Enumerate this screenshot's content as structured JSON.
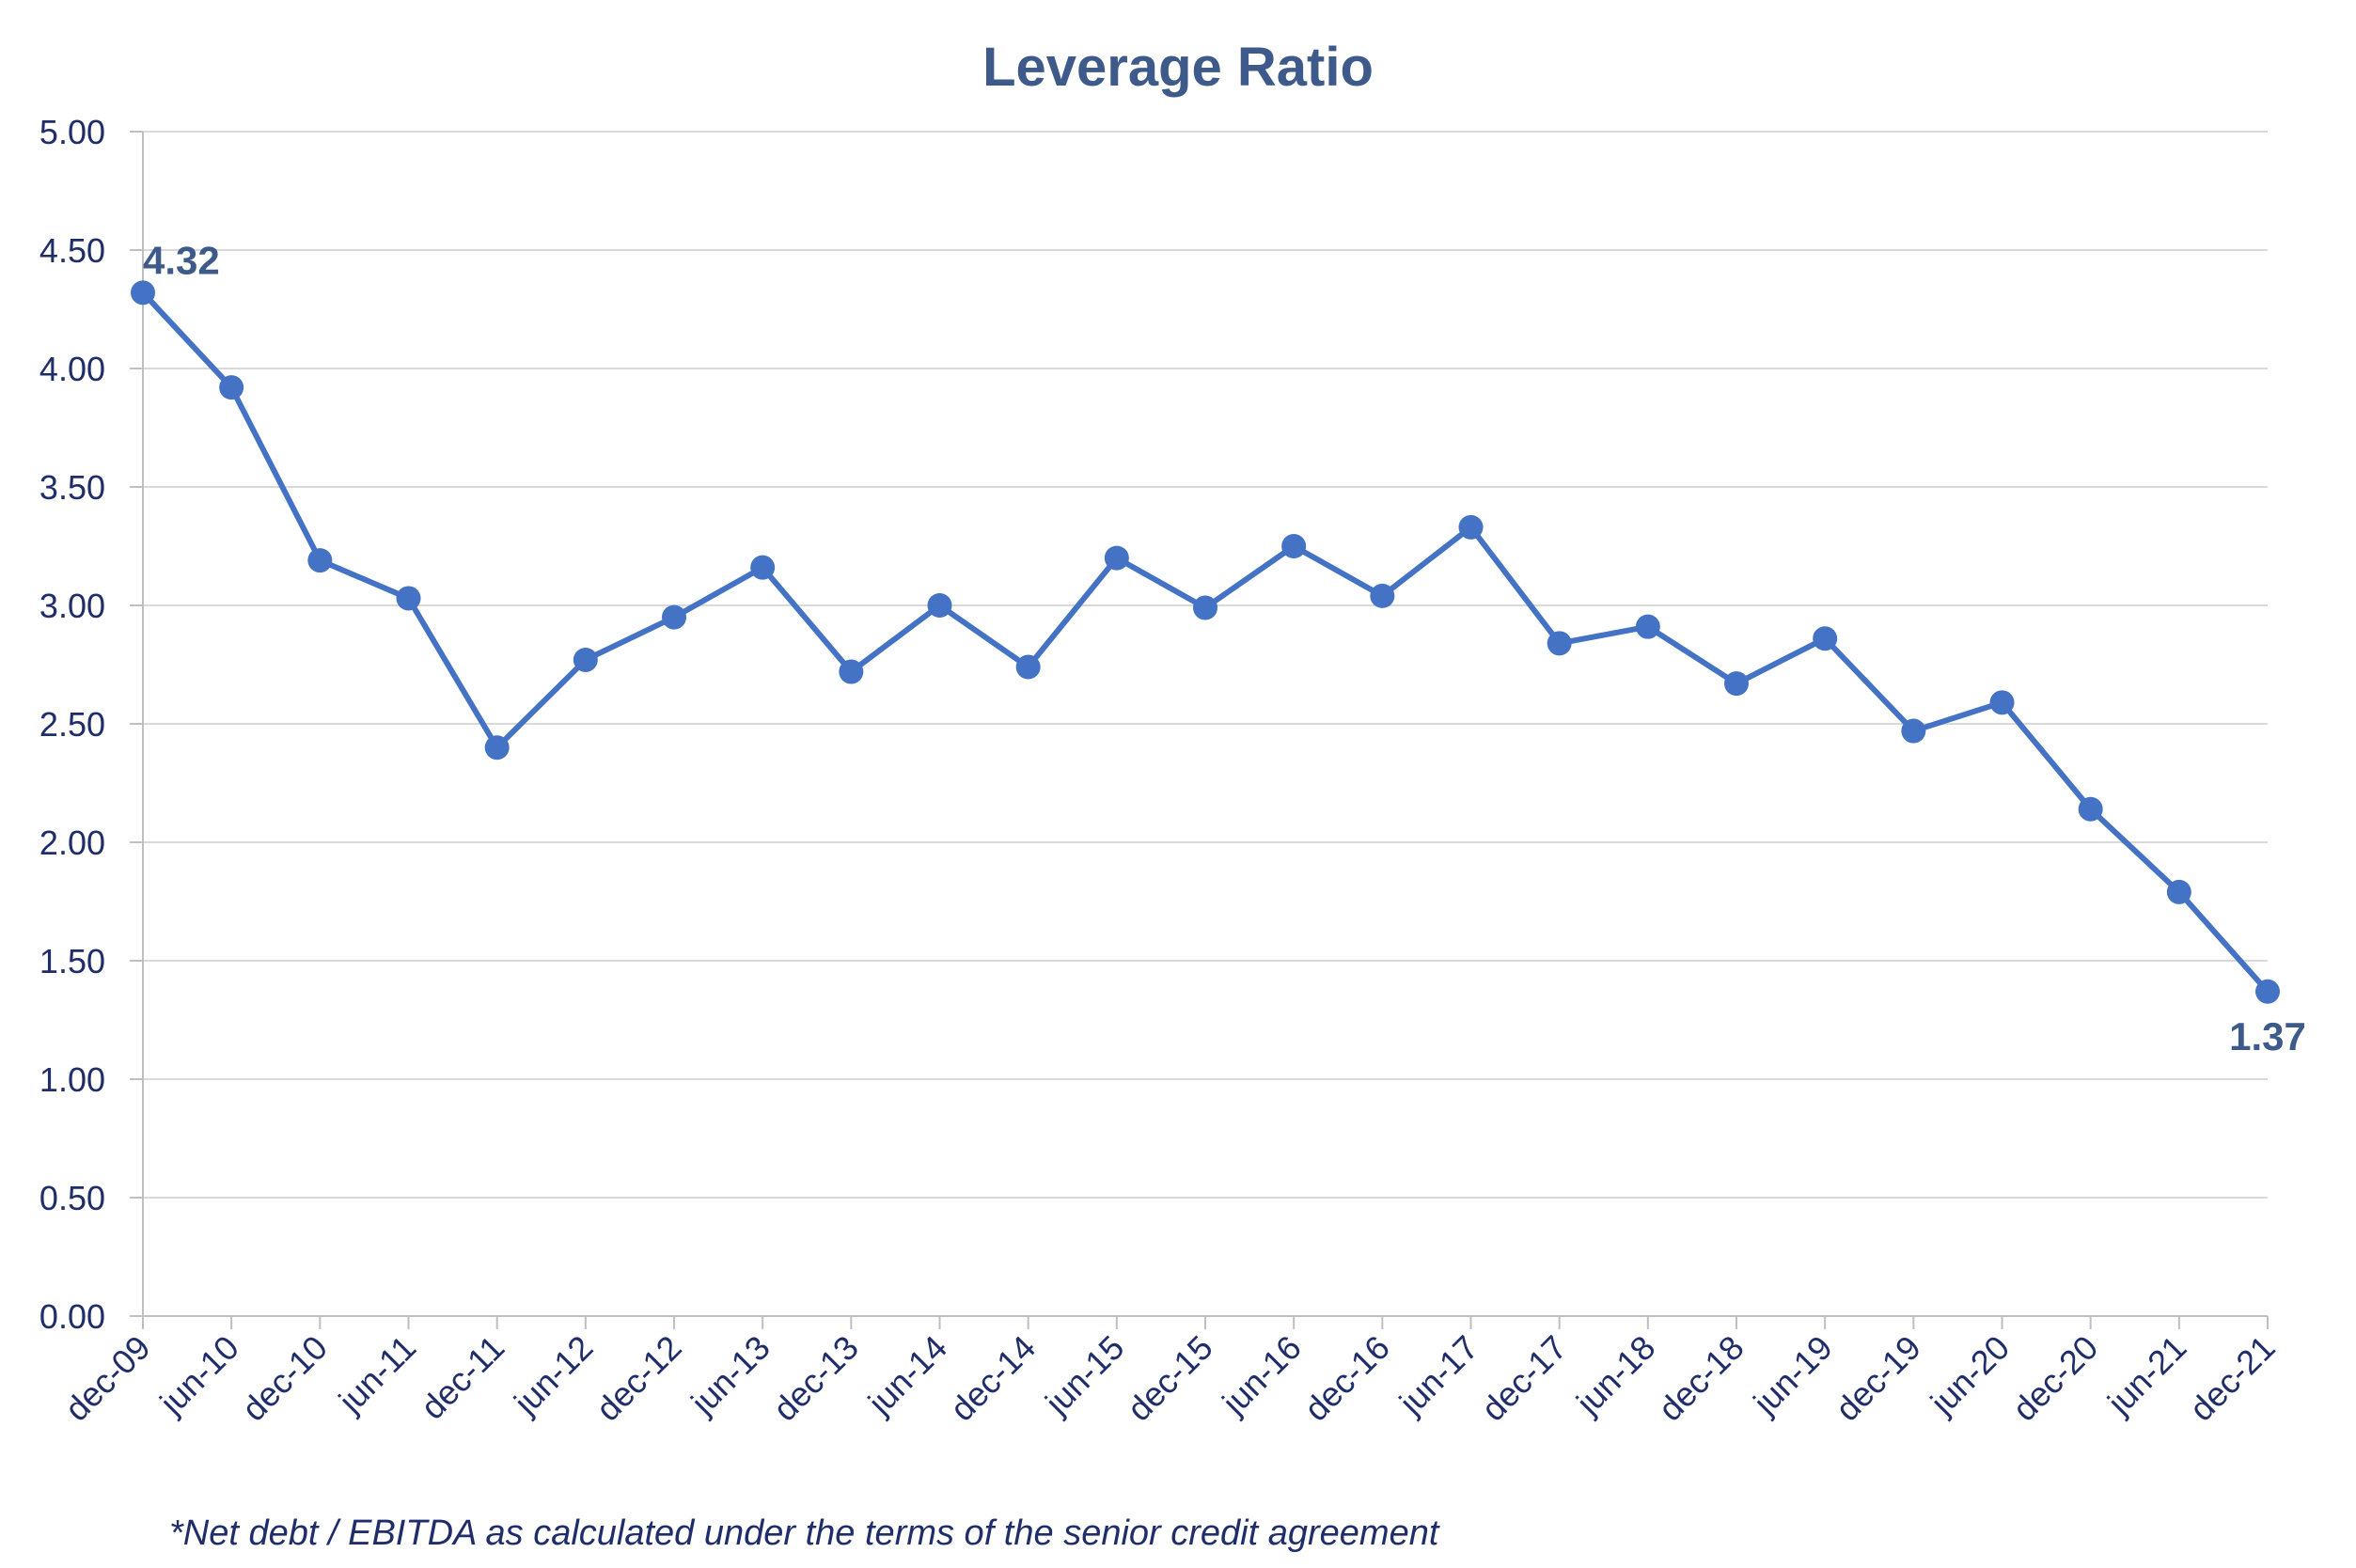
{
  "chart_data": {
    "type": "line",
    "title": "Leverage Ratio",
    "xlabel": "",
    "ylabel": "",
    "categories": [
      "dec-09",
      "jun-10",
      "dec-10",
      "jun-11",
      "dec-11",
      "jun-12",
      "dec-12",
      "jun-13",
      "dec-13",
      "jun-14",
      "dec-14",
      "jun-15",
      "dec-15",
      "jun-16",
      "dec-16",
      "jun-17",
      "dec-17",
      "jun-18",
      "dec-18",
      "jun-19",
      "dec-19",
      "jun-20",
      "dec-20",
      "jun-21",
      "dec-21"
    ],
    "series": [
      {
        "values": [
          4.32,
          3.92,
          3.19,
          3.03,
          2.4,
          2.77,
          2.95,
          3.16,
          2.72,
          3.0,
          2.74,
          3.2,
          2.99,
          3.25,
          3.04,
          3.33,
          2.84,
          2.91,
          2.67,
          2.86,
          2.47,
          2.59,
          2.14,
          1.79,
          1.37
        ]
      }
    ],
    "ylim": [
      0,
      5
    ],
    "yticks": [
      "0.00",
      "0.50",
      "1.00",
      "1.50",
      "2.00",
      "2.50",
      "3.00",
      "3.50",
      "4.00",
      "4.50",
      "5.00"
    ],
    "data_labels": [
      {
        "index": 0,
        "text": "4.32"
      },
      {
        "index": 24,
        "text": "1.37"
      }
    ],
    "grid": "horizontal",
    "legend": "none",
    "colors": {
      "line": "#4472c4",
      "text": "#1f2d6b",
      "label": "#3e5a8a",
      "grid": "#d9d9d9",
      "axis": "#bfbfbf"
    }
  },
  "footnote": "*Net debt / EBITDA as calculated under the terms of the senior credit agreement"
}
